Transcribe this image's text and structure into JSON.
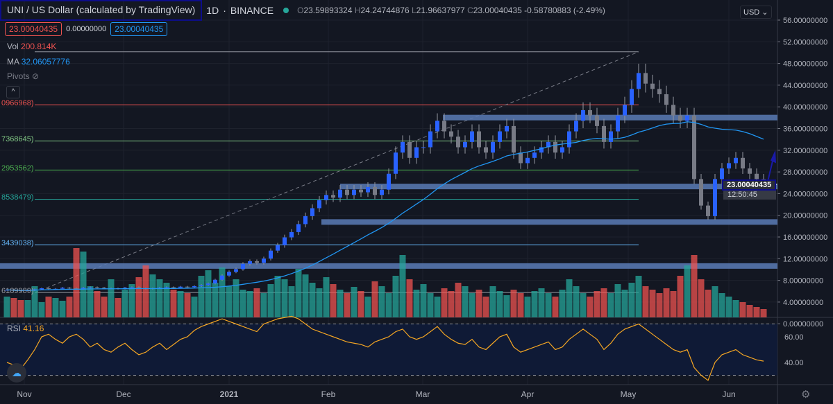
{
  "header": {
    "title": "UNI / US Dollar (calculated by TradingView)",
    "interval": "1D",
    "exchange": "BINANCE",
    "ohlc": {
      "o_label": "O",
      "o": "23.59893324",
      "h_label": "H",
      "h": "24.24744876",
      "l_label": "L",
      "l": "21.96637977",
      "c_label": "C",
      "c": "23.00040435",
      "change": "-0.58780883 (-2.49%)"
    }
  },
  "trade": {
    "sell": "23.00040435",
    "spread": "0.00000000",
    "buy": "23.00040435"
  },
  "legend": {
    "vol_label": "Vol",
    "vol": "200.814K",
    "ma_label": "MA",
    "ma": "32.06057776",
    "pivots_label": "Pivots",
    "collapse": "^"
  },
  "fib_labels": [
    "0966968)",
    "7368645)",
    "2953562)",
    "8538479)",
    "3439038)",
    "6189989)"
  ],
  "currency": "USD",
  "last_price": "23.00040435",
  "countdown": "12:50:45",
  "rsi": {
    "label": "RSI",
    "value": "41.16"
  },
  "colors": {
    "up": "#26a69a",
    "down": "#ef5350",
    "candle": "#2962ff",
    "ma": "#2196f3",
    "rsi": "#f5a623",
    "zone": "#5b7bb5"
  },
  "chart_data": {
    "type": "candlestick",
    "title": "UNI / US Dollar 1D",
    "x_ticks": [
      "Nov",
      "Dec",
      "2021",
      "Feb",
      "Mar",
      "Apr",
      "May",
      "Jun"
    ],
    "y_ticks": [
      "56.00000000",
      "52.00000000",
      "48.00000000",
      "44.00000000",
      "40.00000000",
      "36.00000000",
      "32.00000000",
      "28.00000000",
      "24.00000000",
      "20.00000000",
      "16.00000000",
      "12.00000000",
      "8.00000000",
      "4.00000000",
      "0.00000000"
    ],
    "rsi_ticks": [
      "60.00",
      "40.00"
    ],
    "ylim": [
      0,
      56
    ],
    "closes": [
      3.1,
      3.0,
      2.9,
      3.0,
      3.2,
      3.4,
      3.3,
      3.3,
      3.5,
      3.4,
      3.3,
      3.5,
      3.6,
      3.5,
      3.4,
      3.4,
      3.3,
      3.5,
      3.6,
      3.4,
      3.3,
      3.4,
      3.5,
      3.6,
      3.5,
      3.7,
      3.6,
      3.8,
      4.0,
      4.3,
      5.0,
      5.8,
      6.5,
      7.0,
      8.0,
      8.5,
      8.2,
      9.0,
      10.5,
      11.5,
      13,
      14,
      15.5,
      17,
      18.5,
      20,
      21,
      20.5,
      22,
      21,
      22,
      21.5,
      22.5,
      21,
      22,
      25,
      29,
      31,
      28,
      30,
      30,
      33,
      35,
      33,
      32,
      30,
      31,
      33,
      30,
      29,
      31,
      33,
      34,
      29,
      27,
      28,
      29,
      30,
      31,
      29,
      30,
      33,
      35,
      37,
      36,
      34,
      31,
      33,
      36,
      38,
      41,
      44,
      42,
      41,
      40,
      38,
      36,
      35,
      36,
      24,
      19,
      17,
      24,
      26,
      27,
      28,
      26,
      25,
      24,
      23
    ],
    "volume_rel": [
      30,
      28,
      25,
      25,
      45,
      22,
      30,
      28,
      24,
      30,
      100,
      95,
      45,
      38,
      30,
      55,
      28,
      40,
      48,
      58,
      75,
      62,
      55,
      50,
      40,
      38,
      35,
      30,
      60,
      68,
      50,
      72,
      45,
      55,
      40,
      38,
      42,
      35,
      48,
      60,
      55,
      45,
      70,
      62,
      50,
      42,
      58,
      48,
      40,
      35,
      44,
      38,
      30,
      52,
      45,
      35,
      60,
      90,
      55,
      40,
      48,
      35,
      30,
      42,
      38,
      50,
      45,
      35,
      40,
      30,
      45,
      38,
      32,
      40,
      35,
      30,
      38,
      42,
      35,
      30,
      40,
      55,
      45,
      35,
      30,
      38,
      42,
      35,
      48,
      40,
      50,
      60,
      45,
      40,
      35,
      42,
      38,
      60,
      75,
      90,
      55,
      40,
      45,
      35,
      30,
      25,
      22,
      18,
      15,
      12
    ],
    "rsi": [
      40,
      38,
      35,
      42,
      50,
      60,
      62,
      58,
      55,
      60,
      62,
      58,
      52,
      55,
      50,
      48,
      52,
      55,
      50,
      46,
      48,
      52,
      55,
      50,
      54,
      58,
      60,
      65,
      68,
      70,
      72,
      74,
      72,
      70,
      68,
      66,
      64,
      70,
      72,
      74,
      75,
      76,
      74,
      70,
      66,
      64,
      62,
      60,
      58,
      56,
      55,
      54,
      52,
      56,
      58,
      60,
      64,
      66,
      60,
      58,
      60,
      64,
      68,
      62,
      58,
      55,
      54,
      58,
      52,
      50,
      55,
      60,
      62,
      52,
      48,
      50,
      52,
      54,
      56,
      50,
      52,
      58,
      62,
      66,
      62,
      58,
      50,
      55,
      62,
      66,
      68,
      70,
      66,
      62,
      58,
      54,
      50,
      48,
      50,
      36,
      30,
      26,
      40,
      46,
      48,
      50,
      46,
      44,
      42,
      41
    ],
    "fib_levels": [
      48,
      38,
      31.2,
      25.7,
      20.2,
      11.6,
      2.6
    ],
    "zones": [
      35.6,
      22.6,
      15.9,
      7.6
    ]
  }
}
